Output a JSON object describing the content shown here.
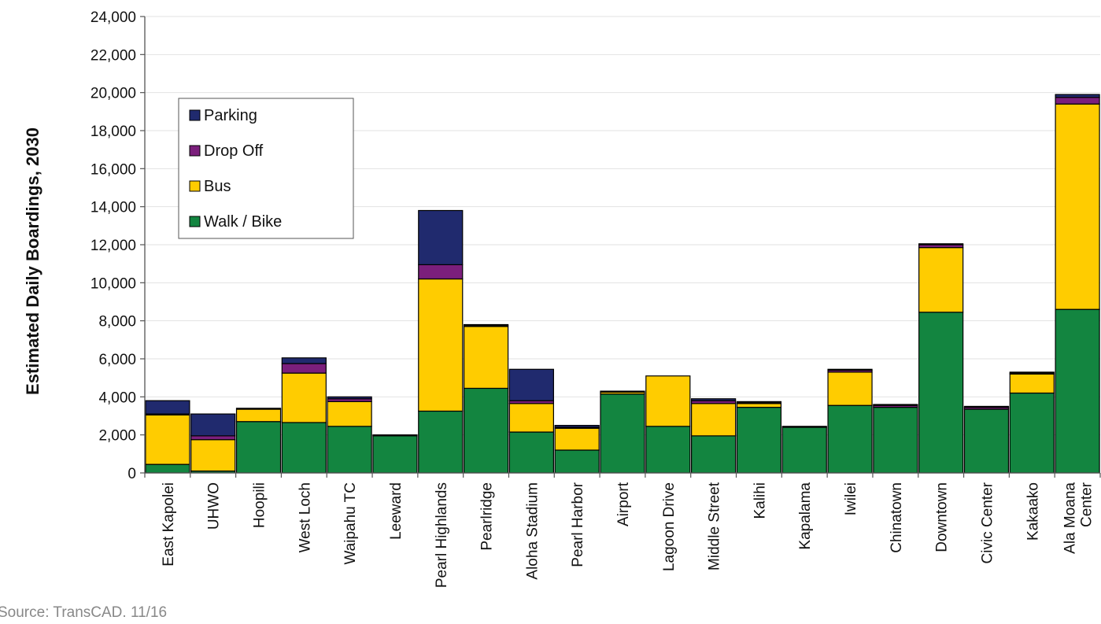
{
  "chart_data": {
    "type": "bar",
    "stacked": true,
    "ylabel": "Estimated Daily Boardings, 2030",
    "xlabel": "",
    "title": "",
    "ylim": [
      0,
      24000
    ],
    "yticks": [
      0,
      2000,
      4000,
      6000,
      8000,
      10000,
      12000,
      14000,
      16000,
      18000,
      20000,
      22000,
      24000
    ],
    "ytick_labels": [
      "0",
      "2,000",
      "4,000",
      "6,000",
      "8,000",
      "10,000",
      "12,000",
      "14,000",
      "16,000",
      "18,000",
      "20,000",
      "22,000",
      "24,000"
    ],
    "grid": true,
    "legend_position": "top-left",
    "categories": [
      [
        "East Kapolei"
      ],
      [
        "UHWO"
      ],
      [
        "Hoopili"
      ],
      [
        "West Loch"
      ],
      [
        "Waipahu TC"
      ],
      [
        "Leeward"
      ],
      [
        "Pearl Highlands"
      ],
      [
        "Pearlridge"
      ],
      [
        "Aloha Stadium"
      ],
      [
        "Pearl Harbor"
      ],
      [
        "Airport"
      ],
      [
        "Lagoon Drive"
      ],
      [
        "Middle Street"
      ],
      [
        "Kalihi"
      ],
      [
        "Kapalama"
      ],
      [
        "Iwilei"
      ],
      [
        "Chinatown"
      ],
      [
        "Downtown"
      ],
      [
        "Civic Center"
      ],
      [
        "Kakaako"
      ],
      [
        "Ala Moana",
        "Center"
      ]
    ],
    "series": [
      {
        "name": "Walk / Bike",
        "color": "#138540",
        "values": [
          450,
          100,
          2700,
          2650,
          2450,
          1950,
          3250,
          4450,
          2150,
          1200,
          4150,
          2450,
          1950,
          3450,
          2400,
          3550,
          3450,
          8450,
          3350,
          4200,
          8600
        ]
      },
      {
        "name": "Bus",
        "color": "#FFCC00",
        "values": [
          2600,
          1650,
          650,
          2600,
          1300,
          0,
          6950,
          3250,
          1500,
          1150,
          100,
          2650,
          1700,
          200,
          0,
          1750,
          0,
          3400,
          0,
          1000,
          10800
        ]
      },
      {
        "name": "Drop Off",
        "color": "#7B1F7C",
        "values": [
          50,
          200,
          0,
          500,
          150,
          50,
          750,
          50,
          150,
          50,
          50,
          0,
          150,
          50,
          50,
          100,
          100,
          150,
          100,
          50,
          350
        ]
      },
      {
        "name": "Parking",
        "color": "#202A6E",
        "values": [
          700,
          1150,
          50,
          300,
          100,
          0,
          2850,
          50,
          1650,
          100,
          0,
          0,
          100,
          50,
          0,
          50,
          50,
          50,
          50,
          50,
          150
        ]
      }
    ]
  },
  "legend_order": [
    "Parking",
    "Drop Off",
    "Bus",
    "Walk / Bike"
  ],
  "source": "Source: TransCAD. 11/16"
}
